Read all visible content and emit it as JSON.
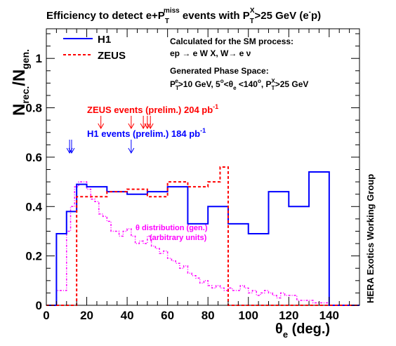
{
  "chart_data": {
    "type": "histogram",
    "title": "Efficiency to detect e+P",
    "title_sup": "miss",
    "title_sub": "T",
    "title_mid": " events with P",
    "title_sup2": "X",
    "title_sub2": "T",
    "title_tail": ">25 GeV (e",
    "title_sup3": "-",
    "title_end": "p)",
    "xlabel": "θ",
    "xlabel_sub": "e",
    "xlabel_tail": " (deg.)",
    "ylabel": "N",
    "ylabel_sub1": "rec.",
    "ylabel_mid": "/N",
    "ylabel_sub2": "gen.",
    "xlim": [
      0,
      155
    ],
    "ylim": [
      0,
      1.12
    ],
    "x_ticks": [
      0,
      20,
      40,
      60,
      80,
      100,
      120,
      140
    ],
    "x_tick_labels": [
      "0",
      "20",
      "40",
      "60",
      "80",
      "100",
      "120",
      "140"
    ],
    "y_ticks": [
      0,
      0.2,
      0.4,
      0.6,
      0.8,
      1
    ],
    "y_tick_labels": [
      "0",
      "0.2",
      "0.4",
      "0.6",
      "0.8",
      "1"
    ],
    "series": [
      {
        "name": "H1",
        "color": "#0000ff",
        "dash": "solid",
        "edges": [
          0,
          5,
          10,
          15,
          20,
          30,
          40,
          50,
          60,
          70,
          80,
          90,
          100,
          110,
          120,
          130,
          140,
          155
        ],
        "values": [
          0,
          0.29,
          0.38,
          0.49,
          0.48,
          0.46,
          0.45,
          0.46,
          0.48,
          0.33,
          0.4,
          0.33,
          0.29,
          0.46,
          0.4,
          0.54,
          0,
          0
        ]
      },
      {
        "name": "ZEUS",
        "color": "#ff0000",
        "dash": "dashed",
        "edges": [
          0,
          5,
          10,
          15,
          20,
          25,
          30,
          40,
          50,
          60,
          70,
          80,
          86,
          90,
          155
        ],
        "values": [
          0,
          0,
          0,
          0.44,
          0.44,
          0.44,
          0.46,
          0.47,
          0.44,
          0.5,
          0.48,
          0.5,
          0.56,
          0,
          0
        ]
      }
    ],
    "theta_distribution": {
      "name": "θ distribution (gen.)",
      "name2": "(arbitrary units)",
      "color": "#ff00ff",
      "edges": [
        0,
        5,
        10,
        12,
        14,
        16,
        18,
        20,
        22,
        24,
        26,
        28,
        30,
        32,
        34,
        36,
        38,
        40,
        42,
        44,
        46,
        48,
        50,
        52,
        54,
        56,
        58,
        60,
        62,
        64,
        66,
        68,
        70,
        72,
        74,
        76,
        78,
        80,
        82,
        84,
        86,
        88,
        90,
        92,
        94,
        96,
        98,
        100,
        102,
        104,
        106,
        108,
        110,
        112,
        114,
        116,
        118,
        120,
        124,
        128,
        132,
        136,
        140,
        155
      ],
      "values": [
        0,
        0.06,
        0.3,
        0.4,
        0.48,
        0.5,
        0.5,
        0.47,
        0.43,
        0.42,
        0.37,
        0.36,
        0.34,
        0.3,
        0.3,
        0.28,
        0.3,
        0.31,
        0.28,
        0.25,
        0.26,
        0.25,
        0.28,
        0.24,
        0.23,
        0.21,
        0.22,
        0.19,
        0.18,
        0.17,
        0.15,
        0.16,
        0.13,
        0.12,
        0.11,
        0.09,
        0.1,
        0.08,
        0.07,
        0.08,
        0.07,
        0.06,
        0.07,
        0.06,
        0.06,
        0.08,
        0.07,
        0.05,
        0.06,
        0.04,
        0.05,
        0.06,
        0.05,
        0.04,
        0.03,
        0.05,
        0.04,
        0.04,
        0.02,
        0.02,
        0.01,
        0.01,
        0,
        0
      ]
    },
    "h1_event_arrows": [
      11.5,
      12.5,
      42
    ],
    "zeus_event_arrows": [
      27,
      42,
      48,
      50,
      51.5
    ],
    "legend": [
      {
        "label": "H1",
        "color": "#0000ff",
        "dash": "solid"
      },
      {
        "label": "ZEUS",
        "color": "#ff0000",
        "dash": "dashed"
      }
    ],
    "legend_placement": "top-left",
    "annotations": {
      "calc_line1": "Calculated for the SM process:",
      "calc_line2": "ep → e W X, W→ e ν",
      "gen_line1": "Generated Phase Space:",
      "gen_line2_a": "P",
      "gen_line2_sup": "e",
      "gen_line2_sub": "T",
      "gen_line2_b": ">10 GeV, 5",
      "gen_line2_deg": "o",
      "gen_line2_c": "<θ",
      "gen_line2_sube": "e",
      "gen_line2_d": " <140",
      "gen_line2_deg2": "o",
      "gen_line2_e": ", P",
      "gen_line2_sup2": "X",
      "gen_line2_sub2": "T",
      "gen_line2_f": ">25 GeV",
      "zeus_events": "ZEUS events (prelim.) 204 pb",
      "zeus_events_sup": "-1",
      "h1_events": "H1 events (prelim.) 184 pb",
      "h1_events_sup": "-1",
      "side_label": "HERA Exotics Working Group"
    }
  }
}
